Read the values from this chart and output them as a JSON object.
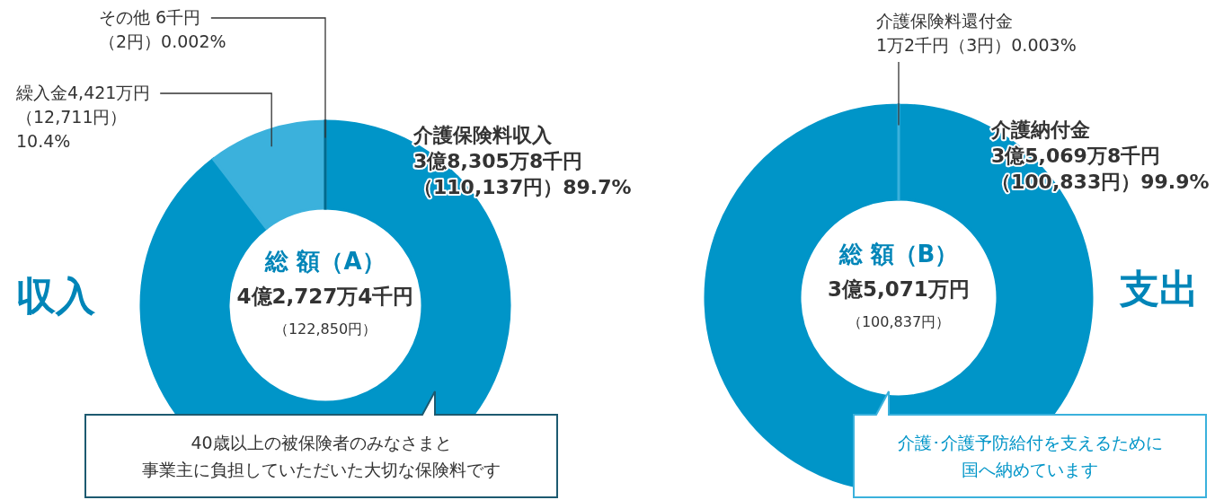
{
  "chart_data": [
    {
      "type": "donut",
      "title": "収入",
      "categories": [
        "介護保険料収入",
        "繰入金",
        "その他"
      ],
      "values": [
        89.7,
        10.4,
        0.002
      ],
      "colors": [
        "#0095c8",
        "#3bb1dc",
        "#006a8e"
      ],
      "value_labels": [
        "3億8,305万8千円（110,137円）89.7%",
        "4,421万円（12,711円）10.4%",
        " 6千円（2円）0.002%"
      ],
      "annotations": [
        "総 額（A）",
        "4億2,727万4千円",
        "（122,850円）",
        "40歳以上の被保険者のみなさまと",
        "事業主に負担していただいた大切な保険料です"
      ]
    },
    {
      "type": "donut",
      "title": "支出",
      "categories": [
        "介護納付金",
        "介護保険料還付金"
      ],
      "values": [
        99.9,
        0.003
      ],
      "colors": [
        "#0095c8",
        "#3bb1dc"
      ],
      "value_labels": [
        "3億5,069万8千円（100,833円）99.9%",
        "1万2千円（3円）0.003%"
      ],
      "annotations": [
        "総 額（B）",
        "3億5,071万円",
        "（100,837円）",
        "介護･介護予防給付を支えるために",
        "国へ納めています"
      ]
    }
  ]
}
